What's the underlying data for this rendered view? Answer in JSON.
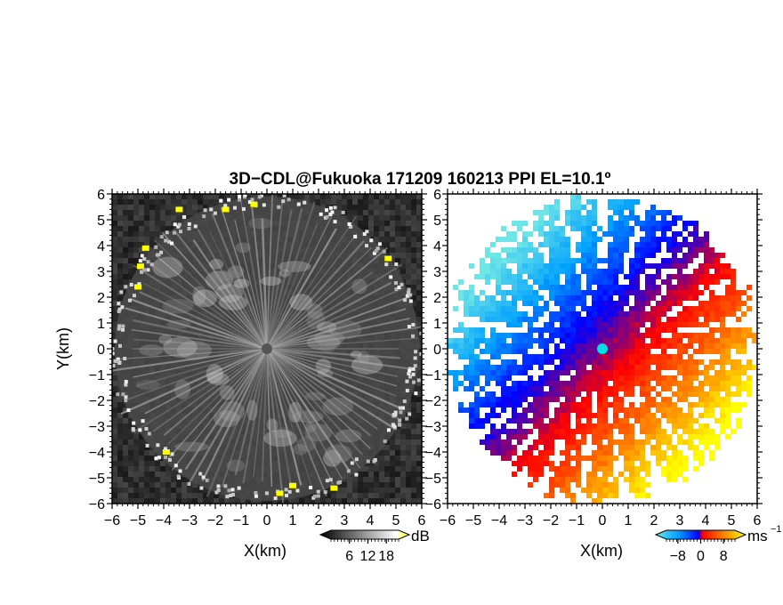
{
  "title": "3D−CDL@Fukuoka 171209 160213 PPI EL=10.1º",
  "chart_data": [
    {
      "type": "heatmap",
      "panel": "left",
      "quantity": "SNR",
      "xlabel": "X(km)",
      "ylabel": "Y(km)",
      "xlim": [
        -6,
        6
      ],
      "ylim": [
        -6,
        6
      ],
      "xticks": [
        "−6",
        "−5",
        "−4",
        "−3",
        "−2",
        "−1",
        "0",
        "1",
        "2",
        "3",
        "4",
        "5",
        "6"
      ],
      "yticks": [
        "−6",
        "−5",
        "−4",
        "−3",
        "−2",
        "−1",
        "0",
        "1",
        "2",
        "3",
        "4",
        "5",
        "6"
      ],
      "colorbar": {
        "unit": "dB",
        "ticks": [
          "6",
          "12",
          "18"
        ],
        "range": [
          0,
          22
        ],
        "colors": [
          "#000000",
          "#ffffff",
          "#ffff00"
        ]
      },
      "radar_range_km": 5.9,
      "hotspots": [
        {
          "x": -3.4,
          "y": 5.4
        },
        {
          "x": -1.6,
          "y": 5.4
        },
        {
          "x": -0.5,
          "y": 5.6
        },
        {
          "x": -4.7,
          "y": 3.9
        },
        {
          "x": -4.9,
          "y": 3.2
        },
        {
          "x": -5.0,
          "y": 2.4
        },
        {
          "x": 0.5,
          "y": -5.6
        },
        {
          "x": 1.0,
          "y": -5.3
        },
        {
          "x": 2.6,
          "y": -5.4
        },
        {
          "x": -3.9,
          "y": -4.0
        },
        {
          "x": 4.7,
          "y": 3.5
        }
      ]
    },
    {
      "type": "heatmap",
      "panel": "right",
      "quantity": "radial velocity",
      "xlabel": "X(km)",
      "xlim": [
        -6,
        6
      ],
      "ylim": [
        -6,
        6
      ],
      "xticks": [
        "−6",
        "−5",
        "−4",
        "−3",
        "−2",
        "−1",
        "0",
        "1",
        "2",
        "3",
        "4",
        "5",
        "6"
      ],
      "yticks": [
        "−6",
        "−5",
        "−4",
        "−3",
        "−2",
        "−1",
        "0",
        "1",
        "2",
        "3",
        "4",
        "5",
        "6"
      ],
      "colorbar": {
        "unit": "ms",
        "unit_exponent": "−1",
        "ticks": [
          "−8",
          "0",
          "8"
        ],
        "range": [
          -12,
          12
        ],
        "colors": [
          "#6ee6e6",
          "#00a0ff",
          "#0000ff",
          "#ff0000",
          "#ff8000",
          "#ffff00"
        ]
      },
      "radar_range_km": 5.9,
      "wind_direction": "towards southeast",
      "center_marker": {
        "x": 0,
        "y": 0,
        "color": "#00e0e0"
      }
    }
  ]
}
